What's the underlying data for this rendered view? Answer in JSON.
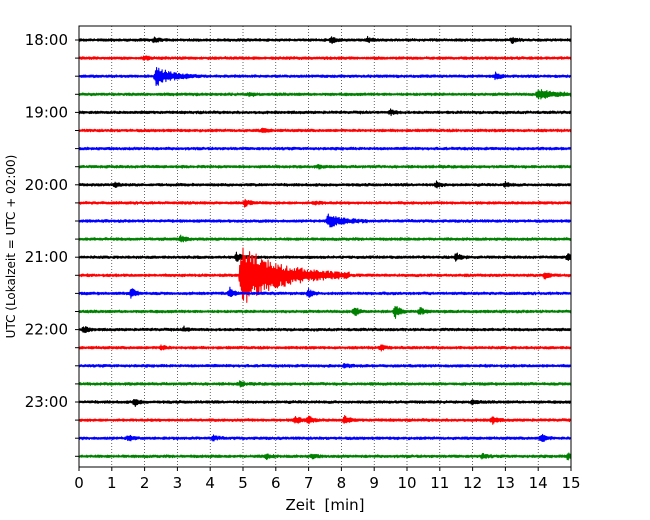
{
  "chart_data": {
    "type": "line",
    "title": "",
    "xlabel": "Zeit  [min]",
    "ylabel": "UTC (Lokalzeit = UTC + 02:00)",
    "xlim": [
      0,
      15
    ],
    "x_ticks": [
      0,
      1,
      2,
      3,
      4,
      5,
      6,
      7,
      8,
      9,
      10,
      11,
      12,
      13,
      14,
      15
    ],
    "x_tick_labels": [
      "0",
      "1",
      "2",
      "3",
      "4",
      "5",
      "6",
      "7",
      "8",
      "9",
      "10",
      "11",
      "12",
      "13",
      "14",
      "15"
    ],
    "y_ticks": [
      "18:00",
      "18:15",
      "18:30",
      "18:45",
      "19:00",
      "19:15",
      "19:30",
      "19:45",
      "20:00",
      "20:15",
      "20:30",
      "20:45",
      "21:00",
      "21:15",
      "21:30",
      "21:45",
      "22:00",
      "22:15",
      "22:30",
      "22:45",
      "23:00",
      "23:15",
      "23:30",
      "23:45"
    ],
    "y_tick_labels": [
      "18:00",
      "",
      "",
      "",
      "19:00",
      "",
      "",
      "",
      "20:00",
      "",
      "",
      "",
      "21:00",
      "",
      "",
      "",
      "22:00",
      "",
      "",
      "",
      "23:00",
      "",
      "",
      ""
    ],
    "vertical_grid": "dotted at each minute",
    "colors": [
      "#000000",
      "#ff0000",
      "#0000ff",
      "#008000"
    ],
    "series": [
      {
        "start": "18:00",
        "color": "#000000",
        "events": [
          {
            "t": 2.3,
            "amp": 0.2
          },
          {
            "t": 7.7,
            "amp": 0.25
          },
          {
            "t": 8.8,
            "amp": 0.2
          },
          {
            "t": 13.2,
            "amp": 0.2
          }
        ]
      },
      {
        "start": "18:15",
        "color": "#ff0000",
        "events": [
          {
            "t": 2.0,
            "amp": 0.15
          }
        ]
      },
      {
        "start": "18:30",
        "color": "#0000ff",
        "events": [
          {
            "t": 2.35,
            "amp": 0.75,
            "dur": 1.3
          },
          {
            "t": 12.7,
            "amp": 0.25
          }
        ]
      },
      {
        "start": "18:45",
        "color": "#008000",
        "events": [
          {
            "t": 5.2,
            "amp": 0.15
          },
          {
            "t": 14.0,
            "amp": 0.4,
            "dur": 1.4
          }
        ]
      },
      {
        "start": "19:00",
        "color": "#000000",
        "events": [
          {
            "t": 9.5,
            "amp": 0.2
          }
        ]
      },
      {
        "start": "19:15",
        "color": "#ff0000",
        "events": [
          {
            "t": 5.6,
            "amp": 0.15
          }
        ]
      },
      {
        "start": "19:30",
        "color": "#0000ff",
        "events": []
      },
      {
        "start": "19:45",
        "color": "#008000",
        "events": [
          {
            "t": 7.3,
            "amp": 0.1
          }
        ]
      },
      {
        "start": "20:00",
        "color": "#000000",
        "events": [
          {
            "t": 1.1,
            "amp": 0.2
          },
          {
            "t": 10.9,
            "amp": 0.25
          },
          {
            "t": 13.0,
            "amp": 0.2
          }
        ]
      },
      {
        "start": "20:15",
        "color": "#ff0000",
        "events": [
          {
            "t": 5.05,
            "amp": 0.3
          },
          {
            "t": 7.2,
            "amp": 0.15
          }
        ]
      },
      {
        "start": "20:30",
        "color": "#0000ff",
        "events": [
          {
            "t": 7.6,
            "amp": 0.55,
            "dur": 1.2
          }
        ]
      },
      {
        "start": "20:45",
        "color": "#008000",
        "events": [
          {
            "t": 3.1,
            "amp": 0.3
          }
        ]
      },
      {
        "start": "21:00",
        "color": "#000000",
        "events": [
          {
            "t": 4.8,
            "amp": 0.35
          },
          {
            "t": 11.5,
            "amp": 0.3
          },
          {
            "t": 14.9,
            "amp": 0.35
          }
        ]
      },
      {
        "start": "21:15",
        "color": "#ff0000",
        "events": [
          {
            "t": 4.95,
            "amp": 2.5,
            "dur": 3.3
          },
          {
            "t": 14.2,
            "amp": 0.35
          }
        ]
      },
      {
        "start": "21:30",
        "color": "#0000ff",
        "events": [
          {
            "t": 1.6,
            "amp": 0.4
          },
          {
            "t": 4.6,
            "amp": 0.4
          },
          {
            "t": 7.0,
            "amp": 0.3
          }
        ]
      },
      {
        "start": "21:45",
        "color": "#008000",
        "events": [
          {
            "t": 8.4,
            "amp": 0.4
          },
          {
            "t": 9.65,
            "amp": 0.55
          },
          {
            "t": 10.4,
            "amp": 0.3
          }
        ]
      },
      {
        "start": "22:00",
        "color": "#000000",
        "events": [
          {
            "t": 0.15,
            "amp": 0.25
          },
          {
            "t": 3.2,
            "amp": 0.2
          }
        ]
      },
      {
        "start": "22:15",
        "color": "#ff0000",
        "events": [
          {
            "t": 2.5,
            "amp": 0.2
          },
          {
            "t": 9.2,
            "amp": 0.2
          }
        ]
      },
      {
        "start": "22:30",
        "color": "#0000ff",
        "events": [
          {
            "t": 8.1,
            "amp": 0.15
          }
        ]
      },
      {
        "start": "22:45",
        "color": "#008000",
        "events": [
          {
            "t": 4.9,
            "amp": 0.2
          }
        ]
      },
      {
        "start": "23:00",
        "color": "#000000",
        "events": [
          {
            "t": 1.7,
            "amp": 0.3
          },
          {
            "t": 12.0,
            "amp": 0.2
          }
        ]
      },
      {
        "start": "23:15",
        "color": "#ff0000",
        "events": [
          {
            "t": 6.6,
            "amp": 0.35
          },
          {
            "t": 7.0,
            "amp": 0.35
          },
          {
            "t": 8.1,
            "amp": 0.3
          },
          {
            "t": 12.6,
            "amp": 0.3
          }
        ]
      },
      {
        "start": "23:30",
        "color": "#0000ff",
        "events": [
          {
            "t": 1.5,
            "amp": 0.25
          },
          {
            "t": 4.1,
            "amp": 0.2
          },
          {
            "t": 14.1,
            "amp": 0.35
          }
        ]
      },
      {
        "start": "23:45",
        "color": "#008000",
        "events": [
          {
            "t": 5.7,
            "amp": 0.2
          },
          {
            "t": 7.1,
            "amp": 0.2
          },
          {
            "t": 12.3,
            "amp": 0.2
          },
          {
            "t": 14.9,
            "amp": 0.25
          }
        ]
      }
    ]
  }
}
